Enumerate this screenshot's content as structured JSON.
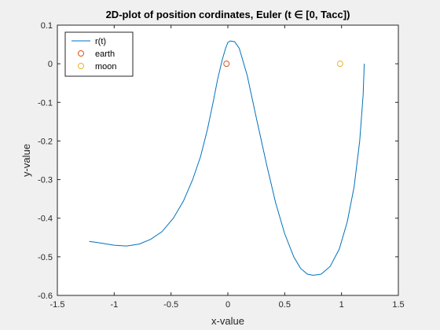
{
  "chart_data": {
    "type": "line",
    "title": "2D-plot of position cordinates, Euler (t ∈ [0, Tacc])",
    "xlabel": "x-value",
    "ylabel": "y-value",
    "xlim": [
      -1.5,
      1.5
    ],
    "ylim": [
      -0.6,
      0.1
    ],
    "xticks": [
      -1.5,
      -1,
      -0.5,
      0,
      0.5,
      1,
      1.5
    ],
    "xtick_labels": [
      "-1.5",
      "-1",
      "-0.5",
      "0",
      "0.5",
      "1",
      "1.5"
    ],
    "yticks": [
      -0.6,
      -0.5,
      -0.4,
      -0.3,
      -0.2,
      -0.1,
      0,
      0.1
    ],
    "ytick_labels": [
      "-0.6",
      "-0.5",
      "-0.4",
      "-0.3",
      "-0.2",
      "-0.1",
      "0",
      "0.1"
    ],
    "grid": false,
    "legend_position": "top-left",
    "series": [
      {
        "name": "r(t)",
        "kind": "line",
        "color": "#0072BD",
        "x": [
          1.2,
          1.19,
          1.16,
          1.11,
          1.05,
          0.98,
          0.9,
          0.82,
          0.75,
          0.7,
          0.64,
          0.58,
          0.5,
          0.42,
          0.34,
          0.25,
          0.17,
          0.1,
          0.06,
          0.02,
          0.0,
          -0.02,
          -0.05,
          -0.09,
          -0.13,
          -0.18,
          -0.24,
          -0.31,
          -0.39,
          -0.48,
          -0.58,
          -0.68,
          -0.78,
          -0.89,
          -1.0,
          -1.1,
          -1.17,
          -1.22
        ],
        "y": [
          0.0,
          -0.08,
          -0.2,
          -0.32,
          -0.41,
          -0.48,
          -0.525,
          -0.545,
          -0.548,
          -0.545,
          -0.53,
          -0.5,
          -0.44,
          -0.36,
          -0.26,
          -0.14,
          -0.03,
          0.04,
          0.057,
          0.059,
          0.055,
          0.04,
          0.01,
          -0.04,
          -0.1,
          -0.17,
          -0.24,
          -0.3,
          -0.355,
          -0.4,
          -0.435,
          -0.455,
          -0.467,
          -0.472,
          -0.47,
          -0.465,
          -0.462,
          -0.46
        ]
      },
      {
        "name": "earth",
        "kind": "marker",
        "color": "#D95319",
        "x": [
          -0.0121
        ],
        "y": [
          0
        ]
      },
      {
        "name": "moon",
        "kind": "marker",
        "color": "#EDB120",
        "x": [
          0.9879
        ],
        "y": [
          0
        ]
      }
    ]
  }
}
